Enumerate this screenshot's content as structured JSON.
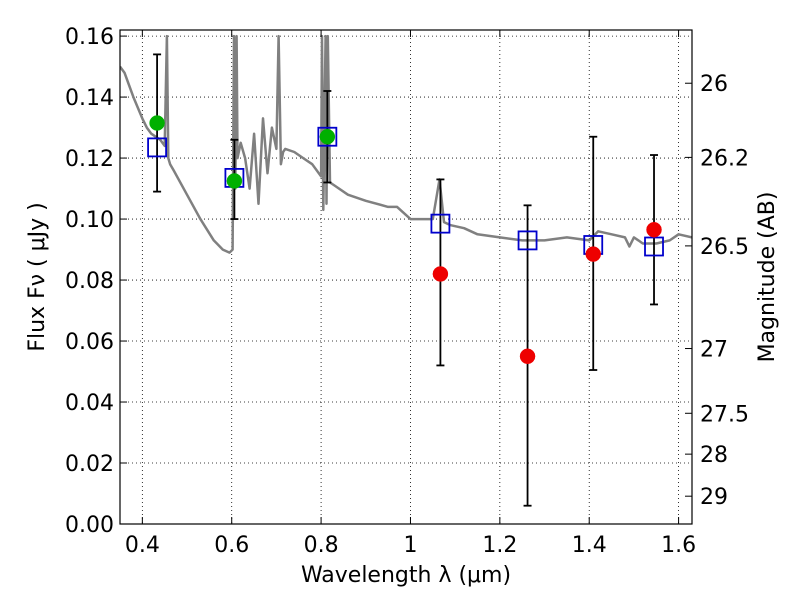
{
  "chart_data": {
    "type": "scatter",
    "xlabel": "Wavelength  λ (μm)",
    "ylabel": "Flux  Fν  ( μJy )",
    "y2label": "Magnitude (AB)",
    "xlim": [
      0.35,
      1.63
    ],
    "ylim": [
      0.0,
      0.162
    ],
    "grid": true,
    "x_ticks": [
      {
        "value": 0.4,
        "label": "0.4"
      },
      {
        "value": 0.6,
        "label": "0.6"
      },
      {
        "value": 0.8,
        "label": "0.8"
      },
      {
        "value": 1.0,
        "label": "1"
      },
      {
        "value": 1.2,
        "label": "1.2"
      },
      {
        "value": 1.4,
        "label": "1.4"
      },
      {
        "value": 1.6,
        "label": "1.6"
      }
    ],
    "y_ticks": [
      {
        "value": 0.0,
        "label": "0.00"
      },
      {
        "value": 0.02,
        "label": "0.02"
      },
      {
        "value": 0.04,
        "label": "0.04"
      },
      {
        "value": 0.06,
        "label": "0.06"
      },
      {
        "value": 0.08,
        "label": "0.08"
      },
      {
        "value": 0.1,
        "label": "0.10"
      },
      {
        "value": 0.12,
        "label": "0.12"
      },
      {
        "value": 0.14,
        "label": "0.14"
      },
      {
        "value": 0.16,
        "label": "0.16"
      }
    ],
    "y2_ticks": [
      {
        "mag": 26,
        "label": "26"
      },
      {
        "mag": 26.2,
        "label": "26.2"
      },
      {
        "mag": 26.5,
        "label": "26.5"
      },
      {
        "mag": 27,
        "label": "27"
      },
      {
        "mag": 27.5,
        "label": "27.5"
      },
      {
        "mag": 28,
        "label": "28"
      },
      {
        "mag": 29,
        "label": "29"
      }
    ],
    "model_spectrum": {
      "color": "#808080",
      "x": [
        0.35,
        0.36,
        0.38,
        0.4,
        0.41,
        0.42,
        0.44,
        0.45,
        0.455,
        0.458,
        0.462,
        0.47,
        0.5,
        0.53,
        0.56,
        0.58,
        0.595,
        0.602,
        0.605,
        0.608,
        0.611,
        0.613,
        0.62,
        0.63,
        0.64,
        0.65,
        0.66,
        0.67,
        0.68,
        0.69,
        0.7,
        0.705,
        0.71,
        0.715,
        0.72,
        0.74,
        0.76,
        0.78,
        0.8,
        0.802,
        0.805,
        0.81,
        0.812,
        0.815,
        0.82,
        0.83,
        0.86,
        0.9,
        0.95,
        0.97,
        1.0,
        1.02,
        1.05,
        1.065,
        1.075,
        1.09,
        1.12,
        1.15,
        1.2,
        1.25,
        1.3,
        1.35,
        1.4,
        1.42,
        1.45,
        1.48,
        1.49,
        1.5,
        1.51,
        1.52,
        1.55,
        1.58,
        1.6,
        1.63
      ],
      "y": [
        0.15,
        0.148,
        0.14,
        0.133,
        0.13,
        0.128,
        0.126,
        0.124,
        0.16,
        0.12,
        0.118,
        0.116,
        0.108,
        0.1,
        0.093,
        0.09,
        0.089,
        0.09,
        0.16,
        0.11,
        0.16,
        0.12,
        0.125,
        0.12,
        0.11,
        0.128,
        0.105,
        0.133,
        0.115,
        0.13,
        0.123,
        0.16,
        0.118,
        0.122,
        0.123,
        0.122,
        0.12,
        0.118,
        0.114,
        0.16,
        0.103,
        0.16,
        0.105,
        0.16,
        0.112,
        0.111,
        0.108,
        0.106,
        0.104,
        0.104,
        0.1,
        0.1,
        0.1,
        0.113,
        0.099,
        0.098,
        0.097,
        0.095,
        0.094,
        0.093,
        0.093,
        0.094,
        0.093,
        0.096,
        0.095,
        0.094,
        0.091,
        0.094,
        0.093,
        0.092,
        0.092,
        0.093,
        0.095,
        0.094
      ]
    },
    "series": [
      {
        "kind": "observed_flux_with_error",
        "color": "#000000",
        "points": [
          {
            "x": 0.433,
            "y": 0.1315,
            "err_lo": 0.109,
            "err_hi": 0.154
          },
          {
            "x": 0.606,
            "y": 0.1125,
            "err_lo": 0.1,
            "err_hi": 0.126
          },
          {
            "x": 0.814,
            "y": 0.127,
            "err_lo": 0.112,
            "err_hi": 0.142
          },
          {
            "x": 1.067,
            "y": 0.082,
            "err_lo": 0.052,
            "err_hi": 0.113
          },
          {
            "x": 1.262,
            "y": 0.055,
            "err_lo": 0.006,
            "err_hi": 0.1045
          },
          {
            "x": 1.409,
            "y": 0.0885,
            "err_lo": 0.0505,
            "err_hi": 0.127
          },
          {
            "x": 1.545,
            "y": 0.0965,
            "err_lo": 0.072,
            "err_hi": 0.121
          }
        ]
      },
      {
        "kind": "model_band_flux",
        "marker": "open-square",
        "color": "#0000cc",
        "points": [
          {
            "x": 0.433,
            "y": 0.1235
          },
          {
            "x": 0.606,
            "y": 0.1135
          },
          {
            "x": 0.814,
            "y": 0.127
          },
          {
            "x": 1.067,
            "y": 0.0985
          },
          {
            "x": 1.262,
            "y": 0.093
          },
          {
            "x": 1.409,
            "y": 0.0915
          },
          {
            "x": 1.545,
            "y": 0.091
          }
        ]
      },
      {
        "kind": "measured_flux_green",
        "marker": "filled-circle",
        "color": "#00b000",
        "points": [
          {
            "x": 0.433,
            "y": 0.1315
          },
          {
            "x": 0.606,
            "y": 0.1125
          },
          {
            "x": 0.814,
            "y": 0.127
          }
        ]
      },
      {
        "kind": "measured_flux_red",
        "marker": "filled-circle",
        "color": "#ee0000",
        "points": [
          {
            "x": 1.067,
            "y": 0.082
          },
          {
            "x": 1.262,
            "y": 0.055
          },
          {
            "x": 1.409,
            "y": 0.0885
          },
          {
            "x": 1.545,
            "y": 0.0965
          }
        ]
      }
    ]
  }
}
